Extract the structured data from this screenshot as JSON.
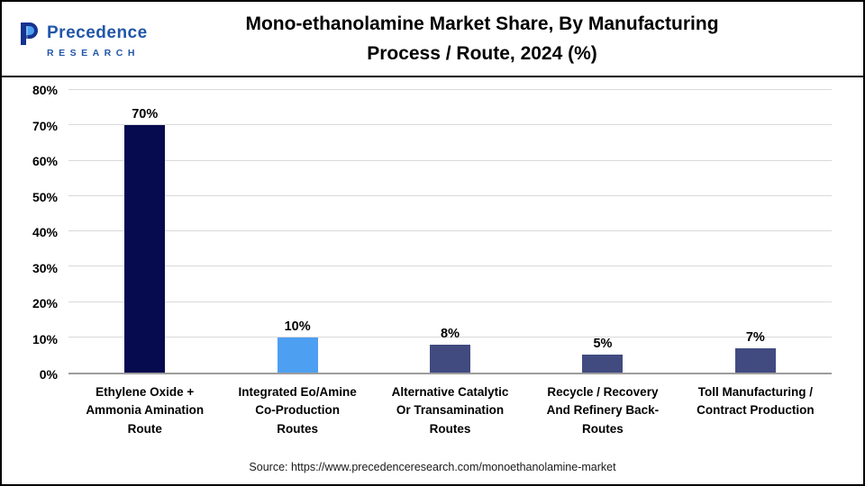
{
  "header": {
    "title_line1": "Mono-ethanolamine Market Share, By Manufacturing",
    "title_line2": "Process / Route, 2024 (%)"
  },
  "logo": {
    "name": "Precedence",
    "sub": "RESEARCH"
  },
  "chart_data": {
    "type": "bar",
    "title": "Mono-ethanolamine Market Share, By Manufacturing Process / Route, 2024 (%)",
    "categories": [
      "Ethylene Oxide + Ammonia Amination Route",
      "Integrated Eo/Amine Co-Production Routes",
      "Alternative Catalytic Or Transamination Routes",
      "Recycle / Recovery And Refinery Back-Routes",
      "Toll Manufacturing / Contract Production"
    ],
    "values": [
      70,
      10,
      8,
      5,
      7
    ],
    "bar_colors": [
      "#060a4e",
      "#4d9ff2",
      "#414b80",
      "#414b80",
      "#414b80"
    ],
    "xlabel": "",
    "ylabel": "",
    "ylim": [
      0,
      80
    ],
    "ytick_step": 10,
    "ytick_suffix": "%",
    "grid": true,
    "legend": "none"
  },
  "x_labels": [
    [
      "Ethylene Oxide +",
      "Ammonia Amination",
      "Route"
    ],
    [
      "Integrated Eo/Amine",
      "Co-Production",
      "Routes"
    ],
    [
      "Alternative Catalytic",
      "Or Transamination",
      "Routes"
    ],
    [
      "Recycle / Recovery",
      "And Refinery Back-",
      "Routes"
    ],
    [
      "Toll Manufacturing /",
      "Contract Production"
    ]
  ],
  "source": "Source: https://www.precedenceresearch.com/monoethanolamine-market"
}
